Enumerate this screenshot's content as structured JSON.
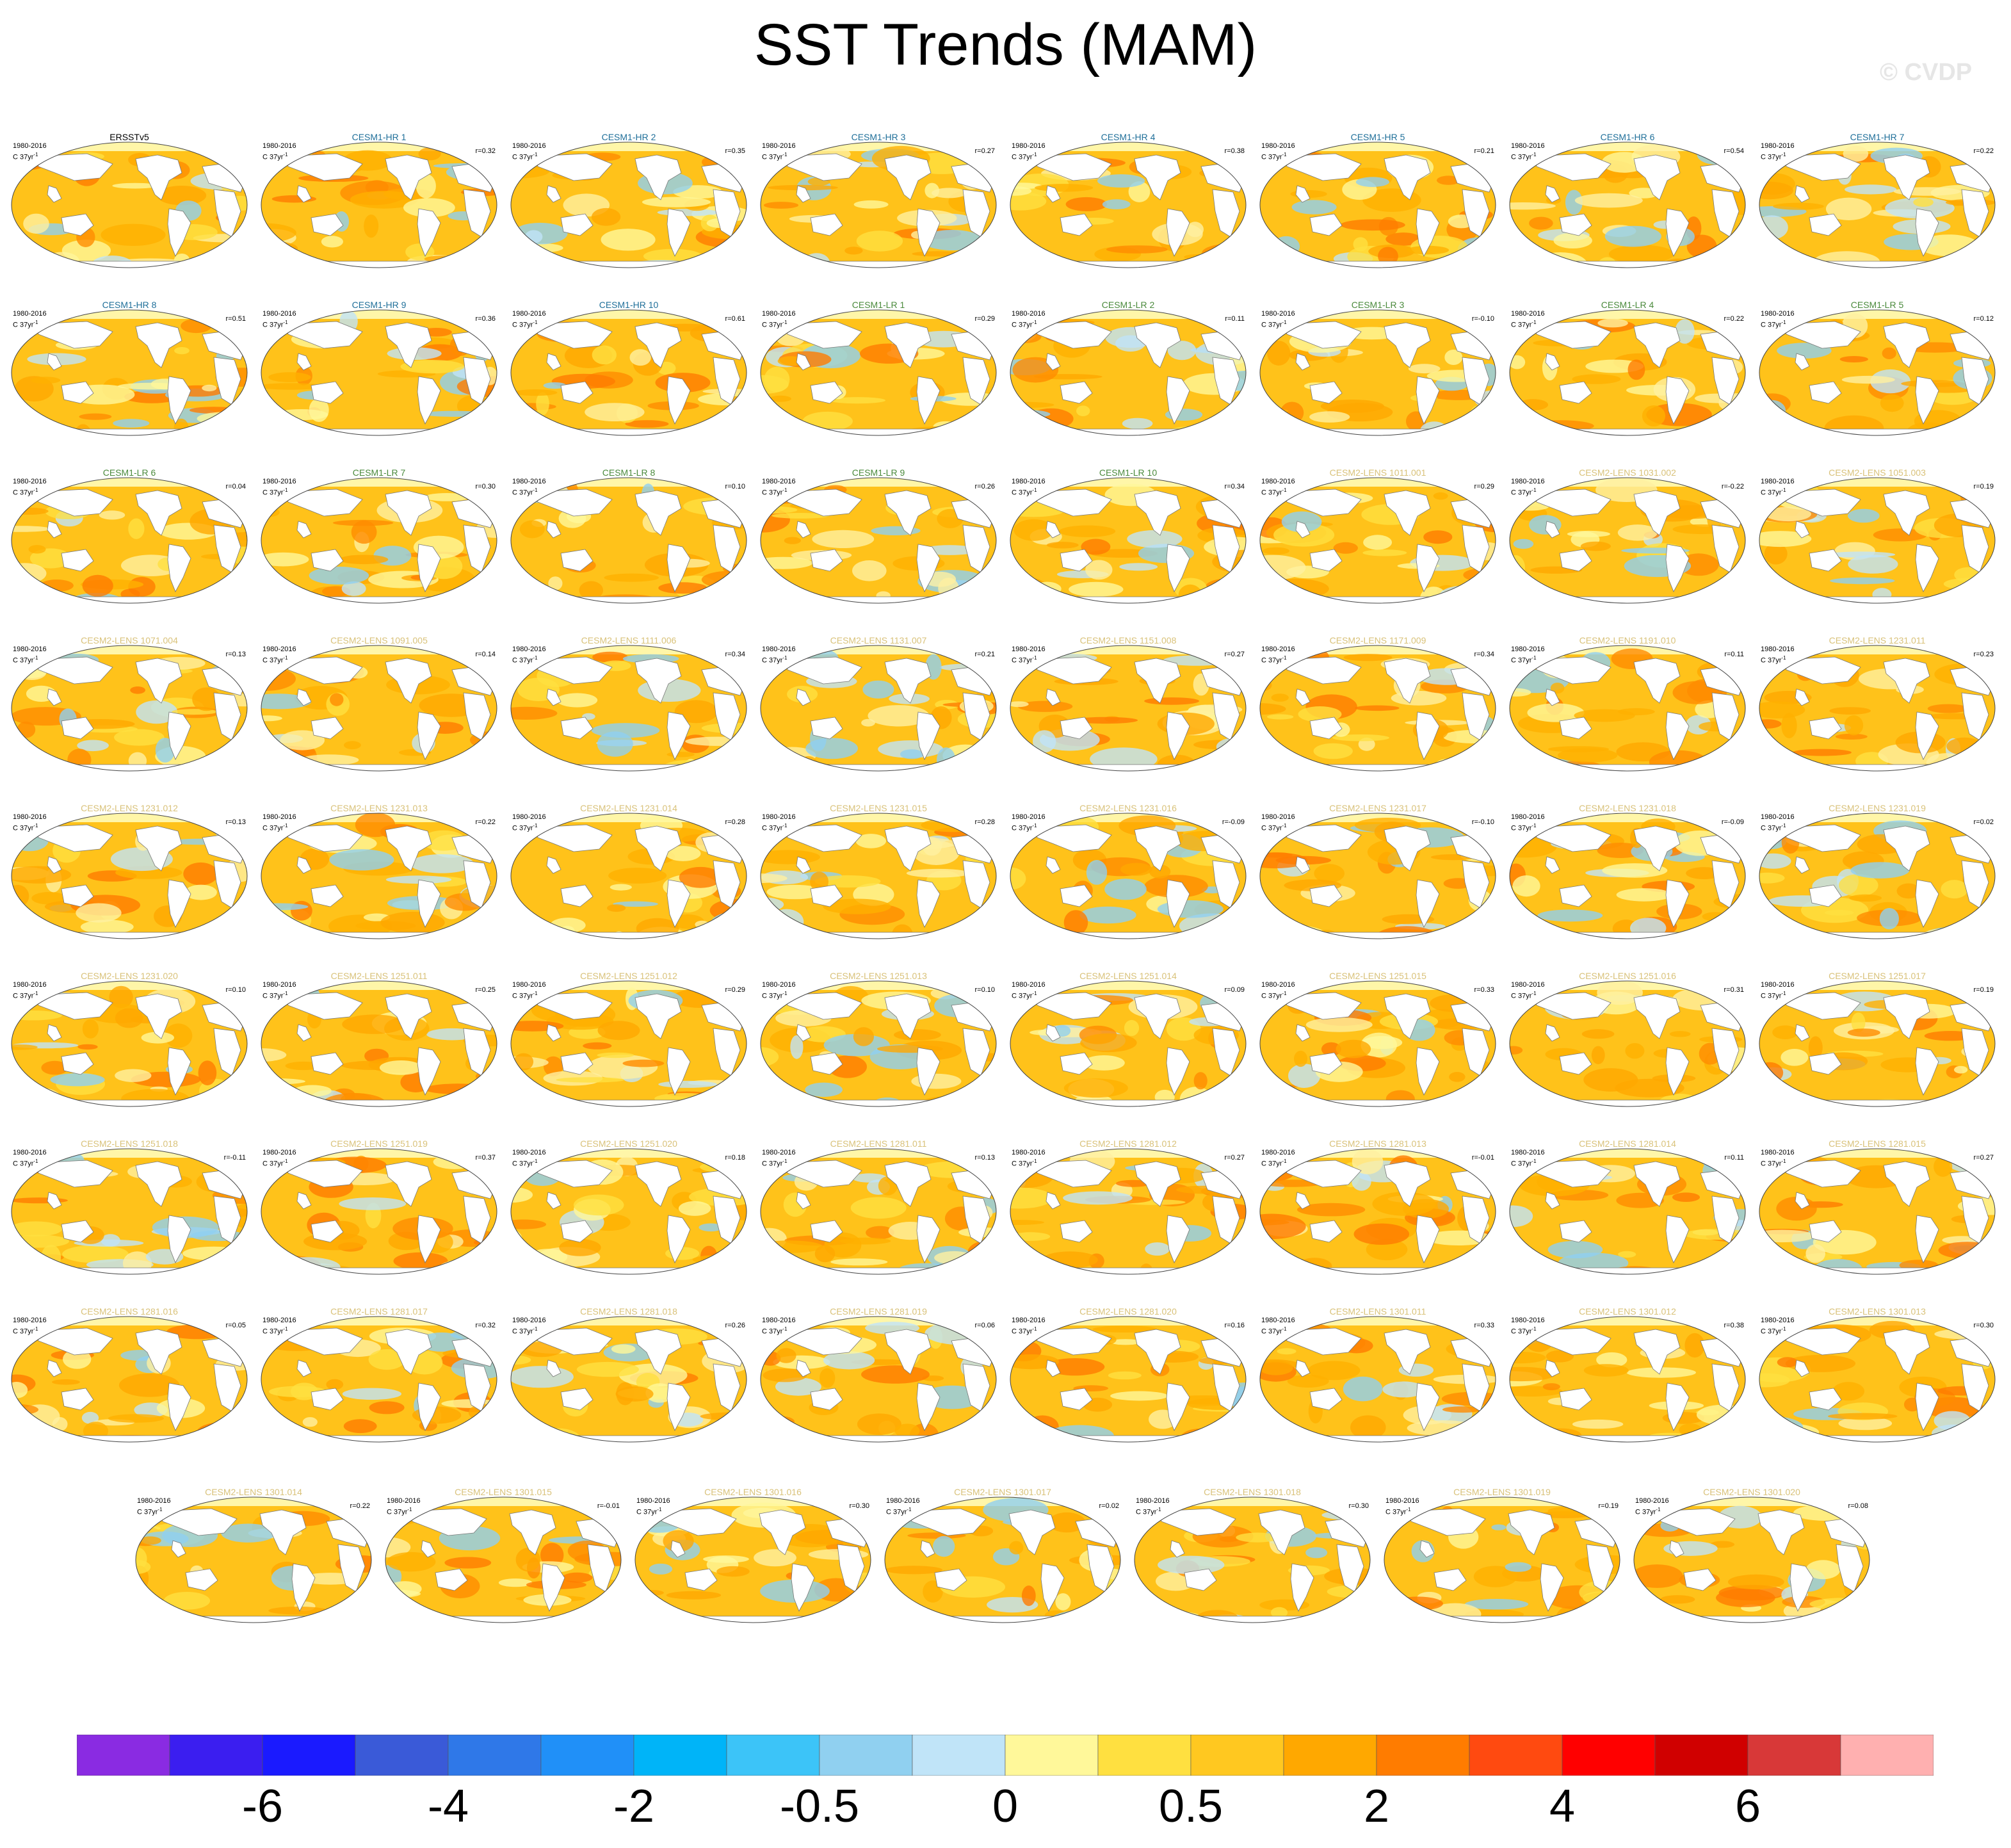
{
  "title": "SST Trends (MAM)",
  "watermark": "© CVDP",
  "period": "1980-2016",
  "units": "C 37yr",
  "units_sup": "-1",
  "colors": {
    "ersst_title": "#000000",
    "hr_title": "#1f6f99",
    "lr_title": "#4a8a3c",
    "lens_title": "#d9c27a"
  },
  "panels": [
    {
      "name": "ERSSTv5",
      "group": "obs",
      "r": ""
    },
    {
      "name": "CESM1-HR 1",
      "group": "hr",
      "r": "r=0.32"
    },
    {
      "name": "CESM1-HR 2",
      "group": "hr",
      "r": "r=0.35"
    },
    {
      "name": "CESM1-HR 3",
      "group": "hr",
      "r": "r=0.27"
    },
    {
      "name": "CESM1-HR 4",
      "group": "hr",
      "r": "r=0.38"
    },
    {
      "name": "CESM1-HR 5",
      "group": "hr",
      "r": "r=0.21"
    },
    {
      "name": "CESM1-HR 6",
      "group": "hr",
      "r": "r=0.54"
    },
    {
      "name": "CESM1-HR 7",
      "group": "hr",
      "r": "r=0.22"
    },
    {
      "name": "CESM1-HR 8",
      "group": "hr",
      "r": "r=0.51"
    },
    {
      "name": "CESM1-HR 9",
      "group": "hr",
      "r": "r=0.36"
    },
    {
      "name": "CESM1-HR 10",
      "group": "hr",
      "r": "r=0.61"
    },
    {
      "name": "CESM1-LR 1",
      "group": "lr",
      "r": "r=0.29"
    },
    {
      "name": "CESM1-LR 2",
      "group": "lr",
      "r": "r=0.11"
    },
    {
      "name": "CESM1-LR 3",
      "group": "lr",
      "r": "r=-0.10"
    },
    {
      "name": "CESM1-LR 4",
      "group": "lr",
      "r": "r=0.22"
    },
    {
      "name": "CESM1-LR 5",
      "group": "lr",
      "r": "r=0.12"
    },
    {
      "name": "CESM1-LR 6",
      "group": "lr",
      "r": "r=0.04"
    },
    {
      "name": "CESM1-LR 7",
      "group": "lr",
      "r": "r=0.30"
    },
    {
      "name": "CESM1-LR 8",
      "group": "lr",
      "r": "r=0.10"
    },
    {
      "name": "CESM1-LR 9",
      "group": "lr",
      "r": "r=0.26"
    },
    {
      "name": "CESM1-LR 10",
      "group": "lr",
      "r": "r=0.34"
    },
    {
      "name": "CESM2-LENS 1011.001",
      "group": "lens",
      "r": "r=0.29"
    },
    {
      "name": "CESM2-LENS 1031.002",
      "group": "lens",
      "r": "r=-0.22"
    },
    {
      "name": "CESM2-LENS 1051.003",
      "group": "lens",
      "r": "r=0.19"
    },
    {
      "name": "CESM2-LENS 1071.004",
      "group": "lens",
      "r": "r=0.13"
    },
    {
      "name": "CESM2-LENS 1091.005",
      "group": "lens",
      "r": "r=0.14"
    },
    {
      "name": "CESM2-LENS 1111.006",
      "group": "lens",
      "r": "r=0.34"
    },
    {
      "name": "CESM2-LENS 1131.007",
      "group": "lens",
      "r": "r=0.21"
    },
    {
      "name": "CESM2-LENS 1151.008",
      "group": "lens",
      "r": "r=0.27"
    },
    {
      "name": "CESM2-LENS 1171.009",
      "group": "lens",
      "r": "r=0.34"
    },
    {
      "name": "CESM2-LENS 1191.010",
      "group": "lens",
      "r": "r=0.11"
    },
    {
      "name": "CESM2-LENS 1231.011",
      "group": "lens",
      "r": "r=0.23"
    },
    {
      "name": "CESM2-LENS 1231.012",
      "group": "lens",
      "r": "r=0.13"
    },
    {
      "name": "CESM2-LENS 1231.013",
      "group": "lens",
      "r": "r=0.22"
    },
    {
      "name": "CESM2-LENS 1231.014",
      "group": "lens",
      "r": "r=0.28"
    },
    {
      "name": "CESM2-LENS 1231.015",
      "group": "lens",
      "r": "r=0.28"
    },
    {
      "name": "CESM2-LENS 1231.016",
      "group": "lens",
      "r": "r=-0.09"
    },
    {
      "name": "CESM2-LENS 1231.017",
      "group": "lens",
      "r": "r=-0.10"
    },
    {
      "name": "CESM2-LENS 1231.018",
      "group": "lens",
      "r": "r=-0.09"
    },
    {
      "name": "CESM2-LENS 1231.019",
      "group": "lens",
      "r": "r=0.02"
    },
    {
      "name": "CESM2-LENS 1231.020",
      "group": "lens",
      "r": "r=0.10"
    },
    {
      "name": "CESM2-LENS 1251.011",
      "group": "lens",
      "r": "r=0.25"
    },
    {
      "name": "CESM2-LENS 1251.012",
      "group": "lens",
      "r": "r=0.29"
    },
    {
      "name": "CESM2-LENS 1251.013",
      "group": "lens",
      "r": "r=0.10"
    },
    {
      "name": "CESM2-LENS 1251.014",
      "group": "lens",
      "r": "r=0.09"
    },
    {
      "name": "CESM2-LENS 1251.015",
      "group": "lens",
      "r": "r=0.33"
    },
    {
      "name": "CESM2-LENS 1251.016",
      "group": "lens",
      "r": "r=0.31"
    },
    {
      "name": "CESM2-LENS 1251.017",
      "group": "lens",
      "r": "r=0.19"
    },
    {
      "name": "CESM2-LENS 1251.018",
      "group": "lens",
      "r": "r=-0.11"
    },
    {
      "name": "CESM2-LENS 1251.019",
      "group": "lens",
      "r": "r=0.37"
    },
    {
      "name": "CESM2-LENS 1251.020",
      "group": "lens",
      "r": "r=0.18"
    },
    {
      "name": "CESM2-LENS 1281.011",
      "group": "lens",
      "r": "r=0.13"
    },
    {
      "name": "CESM2-LENS 1281.012",
      "group": "lens",
      "r": "r=0.27"
    },
    {
      "name": "CESM2-LENS 1281.013",
      "group": "lens",
      "r": "r=-0.01"
    },
    {
      "name": "CESM2-LENS 1281.014",
      "group": "lens",
      "r": "r=0.11"
    },
    {
      "name": "CESM2-LENS 1281.015",
      "group": "lens",
      "r": "r=0.27"
    },
    {
      "name": "CESM2-LENS 1281.016",
      "group": "lens",
      "r": "r=0.05"
    },
    {
      "name": "CESM2-LENS 1281.017",
      "group": "lens",
      "r": "r=0.32"
    },
    {
      "name": "CESM2-LENS 1281.018",
      "group": "lens",
      "r": "r=0.26"
    },
    {
      "name": "CESM2-LENS 1281.019",
      "group": "lens",
      "r": "r=0.06"
    },
    {
      "name": "CESM2-LENS 1281.020",
      "group": "lens",
      "r": "r=0.16"
    },
    {
      "name": "CESM2-LENS 1301.011",
      "group": "lens",
      "r": "r=0.33"
    },
    {
      "name": "CESM2-LENS 1301.012",
      "group": "lens",
      "r": "r=0.38"
    },
    {
      "name": "CESM2-LENS 1301.013",
      "group": "lens",
      "r": "r=0.30"
    },
    {
      "name": "CESM2-LENS 1301.014",
      "group": "lens",
      "r": "r=0.22"
    },
    {
      "name": "CESM2-LENS 1301.015",
      "group": "lens",
      "r": "r=-0.01"
    },
    {
      "name": "CESM2-LENS 1301.016",
      "group": "lens",
      "r": "r=0.30"
    },
    {
      "name": "CESM2-LENS 1301.017",
      "group": "lens",
      "r": "r=0.02"
    },
    {
      "name": "CESM2-LENS 1301.018",
      "group": "lens",
      "r": "r=0.30"
    },
    {
      "name": "CESM2-LENS 1301.019",
      "group": "lens",
      "r": "r=0.19"
    },
    {
      "name": "CESM2-LENS 1301.020",
      "group": "lens",
      "r": "r=0.08"
    }
  ],
  "colorbar": {
    "colors": [
      "#8a2be2",
      "#3b1ef0",
      "#1a1aff",
      "#3a5ad8",
      "#2f78e8",
      "#2090f8",
      "#00b4f8",
      "#3cc4f8",
      "#90d0f0",
      "#c0e4f8",
      "#fff89a",
      "#ffe040",
      "#ffc820",
      "#ffa800",
      "#ff7c00",
      "#ff4a10",
      "#ff0000",
      "#d00000",
      "#d83838",
      "#ffb0b0"
    ],
    "labels": [
      "-6",
      "-4",
      "-2",
      "-0.5",
      "0",
      "0.5",
      "2",
      "4",
      "6"
    ]
  }
}
